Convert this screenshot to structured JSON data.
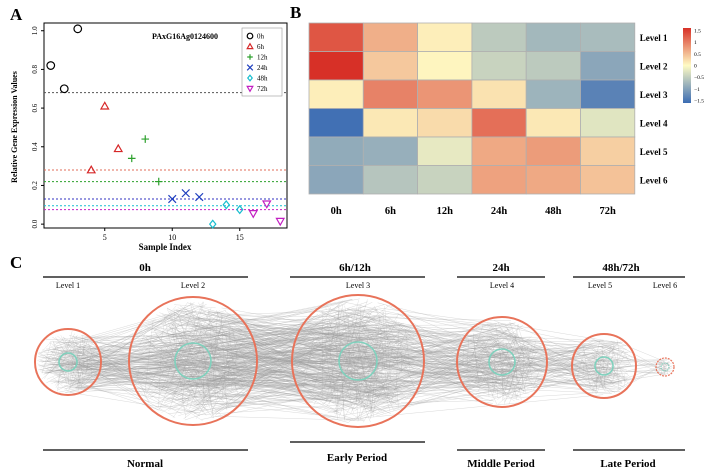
{
  "figure": {
    "panel_labels": [
      "A",
      "B",
      "C"
    ]
  },
  "chart_data": [
    {
      "type": "scatter",
      "panel": "A",
      "title": "PAxG16Ag0124600",
      "xlabel": "Sample Index",
      "ylabel": "Relative Gene Expression Values",
      "xlim": [
        0.5,
        18.5
      ],
      "ylim": [
        -0.02,
        1.04
      ],
      "xticks": [
        5,
        10,
        15
      ],
      "yticks": [
        0.0,
        0.2,
        0.4,
        0.6,
        0.8,
        1.0
      ],
      "ytick_labels": [
        "0.0",
        "0.2",
        "0.4",
        "0.6",
        "0.8",
        "1.0"
      ],
      "legend_position": "top-right",
      "series": [
        {
          "name": "0h",
          "marker": "circle",
          "color": "#000000",
          "x": [
            1,
            2,
            3
          ],
          "y": [
            0.82,
            0.7,
            1.01
          ]
        },
        {
          "name": "6h",
          "marker": "triangle-up",
          "color": "#d62728",
          "x": [
            4,
            5,
            6
          ],
          "y": [
            0.28,
            0.61,
            0.39
          ]
        },
        {
          "name": "12h",
          "marker": "plus",
          "color": "#2ca02c",
          "x": [
            7,
            8,
            9
          ],
          "y": [
            0.34,
            0.44,
            0.22
          ]
        },
        {
          "name": "24h",
          "marker": "x",
          "color": "#1f3fbf",
          "x": [
            10,
            11,
            12
          ],
          "y": [
            0.13,
            0.16,
            0.14
          ]
        },
        {
          "name": "48h",
          "marker": "diamond",
          "color": "#17becf",
          "x": [
            13,
            14,
            15
          ],
          "y": [
            0.0,
            0.1,
            0.075
          ]
        },
        {
          "name": "72h",
          "marker": "triangle-down",
          "color": "#c21fc2",
          "x": [
            16,
            17,
            18
          ],
          "y": [
            0.055,
            0.105,
            0.015
          ]
        }
      ],
      "hlines": [
        {
          "y": 0.68,
          "color": "#555555"
        },
        {
          "y": 0.28,
          "color": "#e06c5a"
        },
        {
          "y": 0.22,
          "color": "#2ca02c"
        },
        {
          "y": 0.13,
          "color": "#3030c0"
        },
        {
          "y": 0.095,
          "color": "#17becf"
        },
        {
          "y": 0.075,
          "color": "#c21fc2"
        }
      ]
    },
    {
      "type": "heatmap",
      "panel": "B",
      "columns": [
        "0h",
        "6h",
        "12h",
        "24h",
        "48h",
        "72h"
      ],
      "rows": [
        "Level 1",
        "Level 2",
        "Level 3",
        "Level 4",
        "Level 5",
        "Level 6"
      ],
      "values": [
        [
          1.3,
          0.6,
          0.1,
          -0.55,
          -0.75,
          -0.7
        ],
        [
          1.6,
          0.4,
          0.05,
          -0.45,
          -0.55,
          -0.95
        ],
        [
          0.1,
          0.95,
          0.8,
          0.2,
          -0.8,
          -1.35
        ],
        [
          -1.55,
          0.15,
          0.25,
          1.1,
          0.15,
          -0.25
        ],
        [
          -0.9,
          -0.85,
          -0.2,
          0.65,
          0.75,
          0.35
        ],
        [
          -0.95,
          -0.6,
          -0.45,
          0.7,
          0.65,
          0.45
        ]
      ],
      "colorbar": {
        "ticks": [
          1.5,
          1,
          0.5,
          0,
          -0.5,
          -1,
          -1.5
        ],
        "tick_labels": [
          "1.5",
          "1",
          "0.5",
          "0",
          "−0.5",
          "−1",
          "−1.5"
        ],
        "vmin": -1.6,
        "vmax": 1.6,
        "colors": [
          "#3b6cb3",
          "#fffbc4",
          "#d73027"
        ]
      }
    }
  ],
  "network": {
    "groups": [
      {
        "header": "0h",
        "footer": "Normal"
      },
      {
        "header": "6h/12h",
        "footer": "Early Period"
      },
      {
        "header": "24h",
        "footer": "Middle Period"
      },
      {
        "header": "48h/72h",
        "footer": "Late Period"
      }
    ],
    "levels": [
      "Level 1",
      "Level 2",
      "Level 3",
      "Level 4",
      "Level 5",
      "Level 6"
    ],
    "colors": {
      "outer_circle": "#e8735a",
      "inner_circle": "#7fd1bd",
      "edges": "#9a9a9a"
    }
  }
}
